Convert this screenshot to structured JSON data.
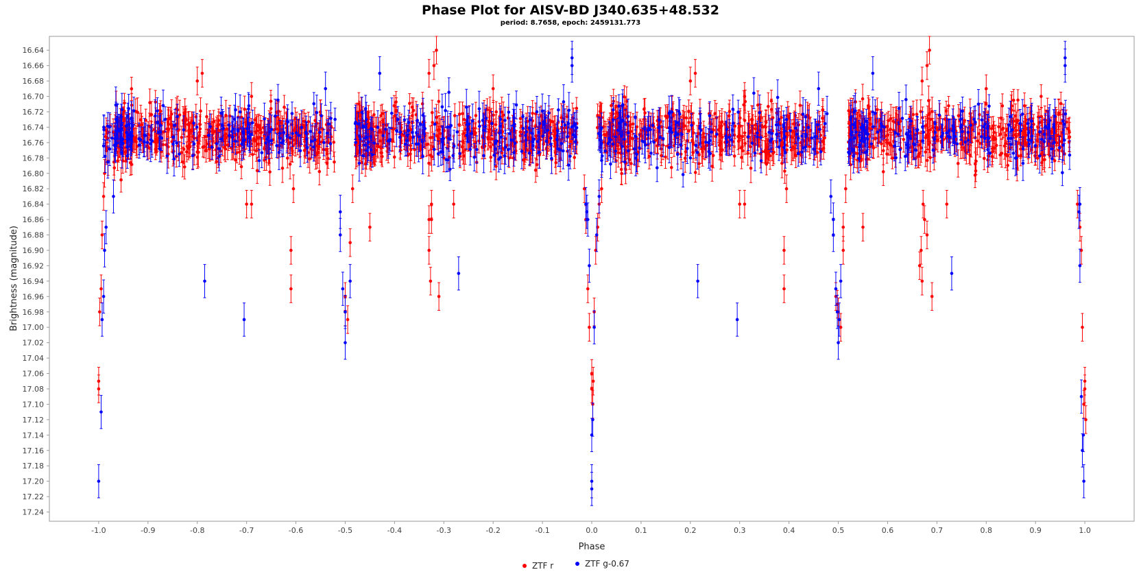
{
  "chart_data": {
    "type": "scatter",
    "title": "Phase Plot for AISV-BD J340.635+48.532",
    "subtitle": "period: 8.7658, epoch: 2459131.773",
    "xlabel": "Phase",
    "ylabel": "Brightness (magnitude)",
    "xlim": [
      -1.1,
      1.1
    ],
    "ylim": [
      17.252,
      16.622
    ],
    "y_inverted": true,
    "grid": false,
    "x_ticks": [
      "-1.0",
      "-0.9",
      "-0.8",
      "-0.7",
      "-0.6",
      "-0.5",
      "-0.4",
      "-0.3",
      "-0.2",
      "-0.1",
      "0.0",
      "0.1",
      "0.2",
      "0.3",
      "0.4",
      "0.5",
      "0.6",
      "0.7",
      "0.8",
      "0.9",
      "1.0"
    ],
    "y_ticks": [
      "16.64",
      "16.66",
      "16.68",
      "16.70",
      "16.72",
      "16.74",
      "16.76",
      "16.78",
      "16.80",
      "16.82",
      "16.84",
      "16.86",
      "16.88",
      "16.90",
      "16.92",
      "16.94",
      "16.96",
      "16.98",
      "17.00",
      "17.02",
      "17.04",
      "17.06",
      "17.08",
      "17.10",
      "17.12",
      "17.14",
      "17.16",
      "17.18",
      "17.20",
      "17.22",
      "17.24"
    ],
    "legend_position": "bottom-center",
    "baseline_mag": 16.75,
    "scatter_sigma": 0.018,
    "series": [
      {
        "name": "ZTF r",
        "color": "#ff0000",
        "typical_error": 0.015,
        "n_baseline_points": 1700,
        "points": [
          [
            0.0,
            17.06
          ],
          [
            0.0,
            17.08
          ],
          [
            0.002,
            17.1
          ],
          [
            0.003,
            17.07
          ],
          [
            -0.005,
            17.0
          ],
          [
            0.005,
            16.98
          ],
          [
            -0.008,
            16.95
          ],
          [
            0.008,
            16.9
          ],
          [
            0.012,
            16.87
          ],
          [
            -0.012,
            16.86
          ],
          [
            0.015,
            16.84
          ],
          [
            0.02,
            16.82
          ],
          [
            -0.015,
            16.82
          ],
          [
            1.0,
            17.07
          ],
          [
            1.0,
            17.08
          ],
          [
            0.998,
            17.1
          ],
          [
            1.002,
            17.12
          ],
          [
            0.995,
            17.0
          ],
          [
            0.993,
            16.9
          ],
          [
            0.99,
            16.87
          ],
          [
            0.985,
            16.84
          ],
          [
            -1.0,
            17.07
          ],
          [
            -1.0,
            17.08
          ],
          [
            -0.998,
            16.98
          ],
          [
            -0.995,
            16.95
          ],
          [
            -0.993,
            16.88
          ],
          [
            -0.99,
            16.83
          ],
          [
            -0.988,
            16.8
          ],
          [
            0.5,
            16.98
          ],
          [
            0.505,
            17.0
          ],
          [
            0.498,
            16.97
          ],
          [
            0.51,
            16.9
          ],
          [
            0.51,
            16.87
          ],
          [
            0.515,
            16.82
          ],
          [
            0.495,
            16.96
          ],
          [
            -0.5,
            16.98
          ],
          [
            -0.49,
            16.89
          ],
          [
            -0.495,
            16.99
          ],
          [
            -0.485,
            16.82
          ],
          [
            -0.5,
            16.96
          ],
          [
            -0.33,
            16.67
          ],
          [
            -0.325,
            16.86
          ],
          [
            -0.33,
            16.9
          ],
          [
            -0.327,
            16.94
          ],
          [
            -0.32,
            16.66
          ],
          [
            -0.315,
            16.64
          ],
          [
            -0.31,
            16.96
          ],
          [
            -0.33,
            16.86
          ],
          [
            -0.325,
            16.84
          ],
          [
            -0.3,
            16.78
          ],
          [
            -0.28,
            16.84
          ],
          [
            0.67,
            16.68
          ],
          [
            0.675,
            16.86
          ],
          [
            0.672,
            16.84
          ],
          [
            0.668,
            16.9
          ],
          [
            0.68,
            16.66
          ],
          [
            0.685,
            16.64
          ],
          [
            0.69,
            16.96
          ],
          [
            0.67,
            16.94
          ],
          [
            0.665,
            16.92
          ],
          [
            0.68,
            16.88
          ],
          [
            0.72,
            16.84
          ],
          [
            -0.61,
            16.9
          ],
          [
            -0.61,
            16.95
          ],
          [
            -0.605,
            16.82
          ],
          [
            0.39,
            16.9
          ],
          [
            0.39,
            16.95
          ],
          [
            0.395,
            16.82
          ],
          [
            -0.69,
            16.84
          ],
          [
            -0.7,
            16.84
          ],
          [
            0.31,
            16.84
          ],
          [
            0.3,
            16.84
          ],
          [
            -0.8,
            16.68
          ],
          [
            -0.79,
            16.67
          ],
          [
            0.2,
            16.68
          ],
          [
            0.21,
            16.67
          ],
          [
            -0.45,
            16.87
          ],
          [
            0.55,
            16.87
          ],
          [
            -0.69,
            16.7
          ],
          [
            0.31,
            16.7
          ],
          [
            -0.2,
            16.69
          ],
          [
            0.8,
            16.69
          ]
        ]
      },
      {
        "name": "ZTF g-0.67",
        "color": "#0000ff",
        "typical_error": 0.018,
        "n_baseline_points": 650,
        "points": [
          [
            0.0,
            17.2
          ],
          [
            0.0,
            17.21
          ],
          [
            0.0,
            17.14
          ],
          [
            0.002,
            17.12
          ],
          [
            -0.005,
            16.92
          ],
          [
            0.005,
            17.0
          ],
          [
            -0.008,
            16.86
          ],
          [
            0.01,
            16.88
          ],
          [
            -0.01,
            16.85
          ],
          [
            0.015,
            16.83
          ],
          [
            -0.012,
            16.84
          ],
          [
            0.998,
            17.2
          ],
          [
            0.995,
            17.16
          ],
          [
            0.997,
            17.14
          ],
          [
            0.993,
            17.09
          ],
          [
            0.99,
            16.92
          ],
          [
            0.988,
            16.85
          ],
          [
            0.99,
            16.84
          ],
          [
            -1.0,
            17.2
          ],
          [
            -0.995,
            17.11
          ],
          [
            -0.993,
            16.99
          ],
          [
            -0.99,
            16.96
          ],
          [
            -0.988,
            16.9
          ],
          [
            -0.985,
            16.87
          ],
          [
            -0.97,
            16.83
          ],
          [
            0.5,
            17.02
          ],
          [
            0.502,
            16.99
          ],
          [
            0.498,
            16.98
          ],
          [
            0.495,
            16.95
          ],
          [
            0.505,
            16.94
          ],
          [
            0.49,
            16.88
          ],
          [
            0.49,
            16.86
          ],
          [
            0.485,
            16.83
          ],
          [
            -0.5,
            17.02
          ],
          [
            -0.5,
            16.98
          ],
          [
            -0.505,
            16.95
          ],
          [
            -0.49,
            16.94
          ],
          [
            -0.51,
            16.88
          ],
          [
            -0.51,
            16.85
          ],
          [
            -0.785,
            16.94
          ],
          [
            0.215,
            16.94
          ],
          [
            -0.705,
            16.99
          ],
          [
            0.295,
            16.99
          ],
          [
            -0.27,
            16.93
          ],
          [
            0.73,
            16.93
          ],
          [
            -0.04,
            16.65
          ],
          [
            -0.04,
            16.66
          ],
          [
            0.96,
            16.65
          ],
          [
            0.96,
            16.66
          ],
          [
            -0.43,
            16.67
          ],
          [
            0.57,
            16.67
          ],
          [
            -0.54,
            16.69
          ],
          [
            0.46,
            16.69
          ]
        ]
      }
    ]
  }
}
